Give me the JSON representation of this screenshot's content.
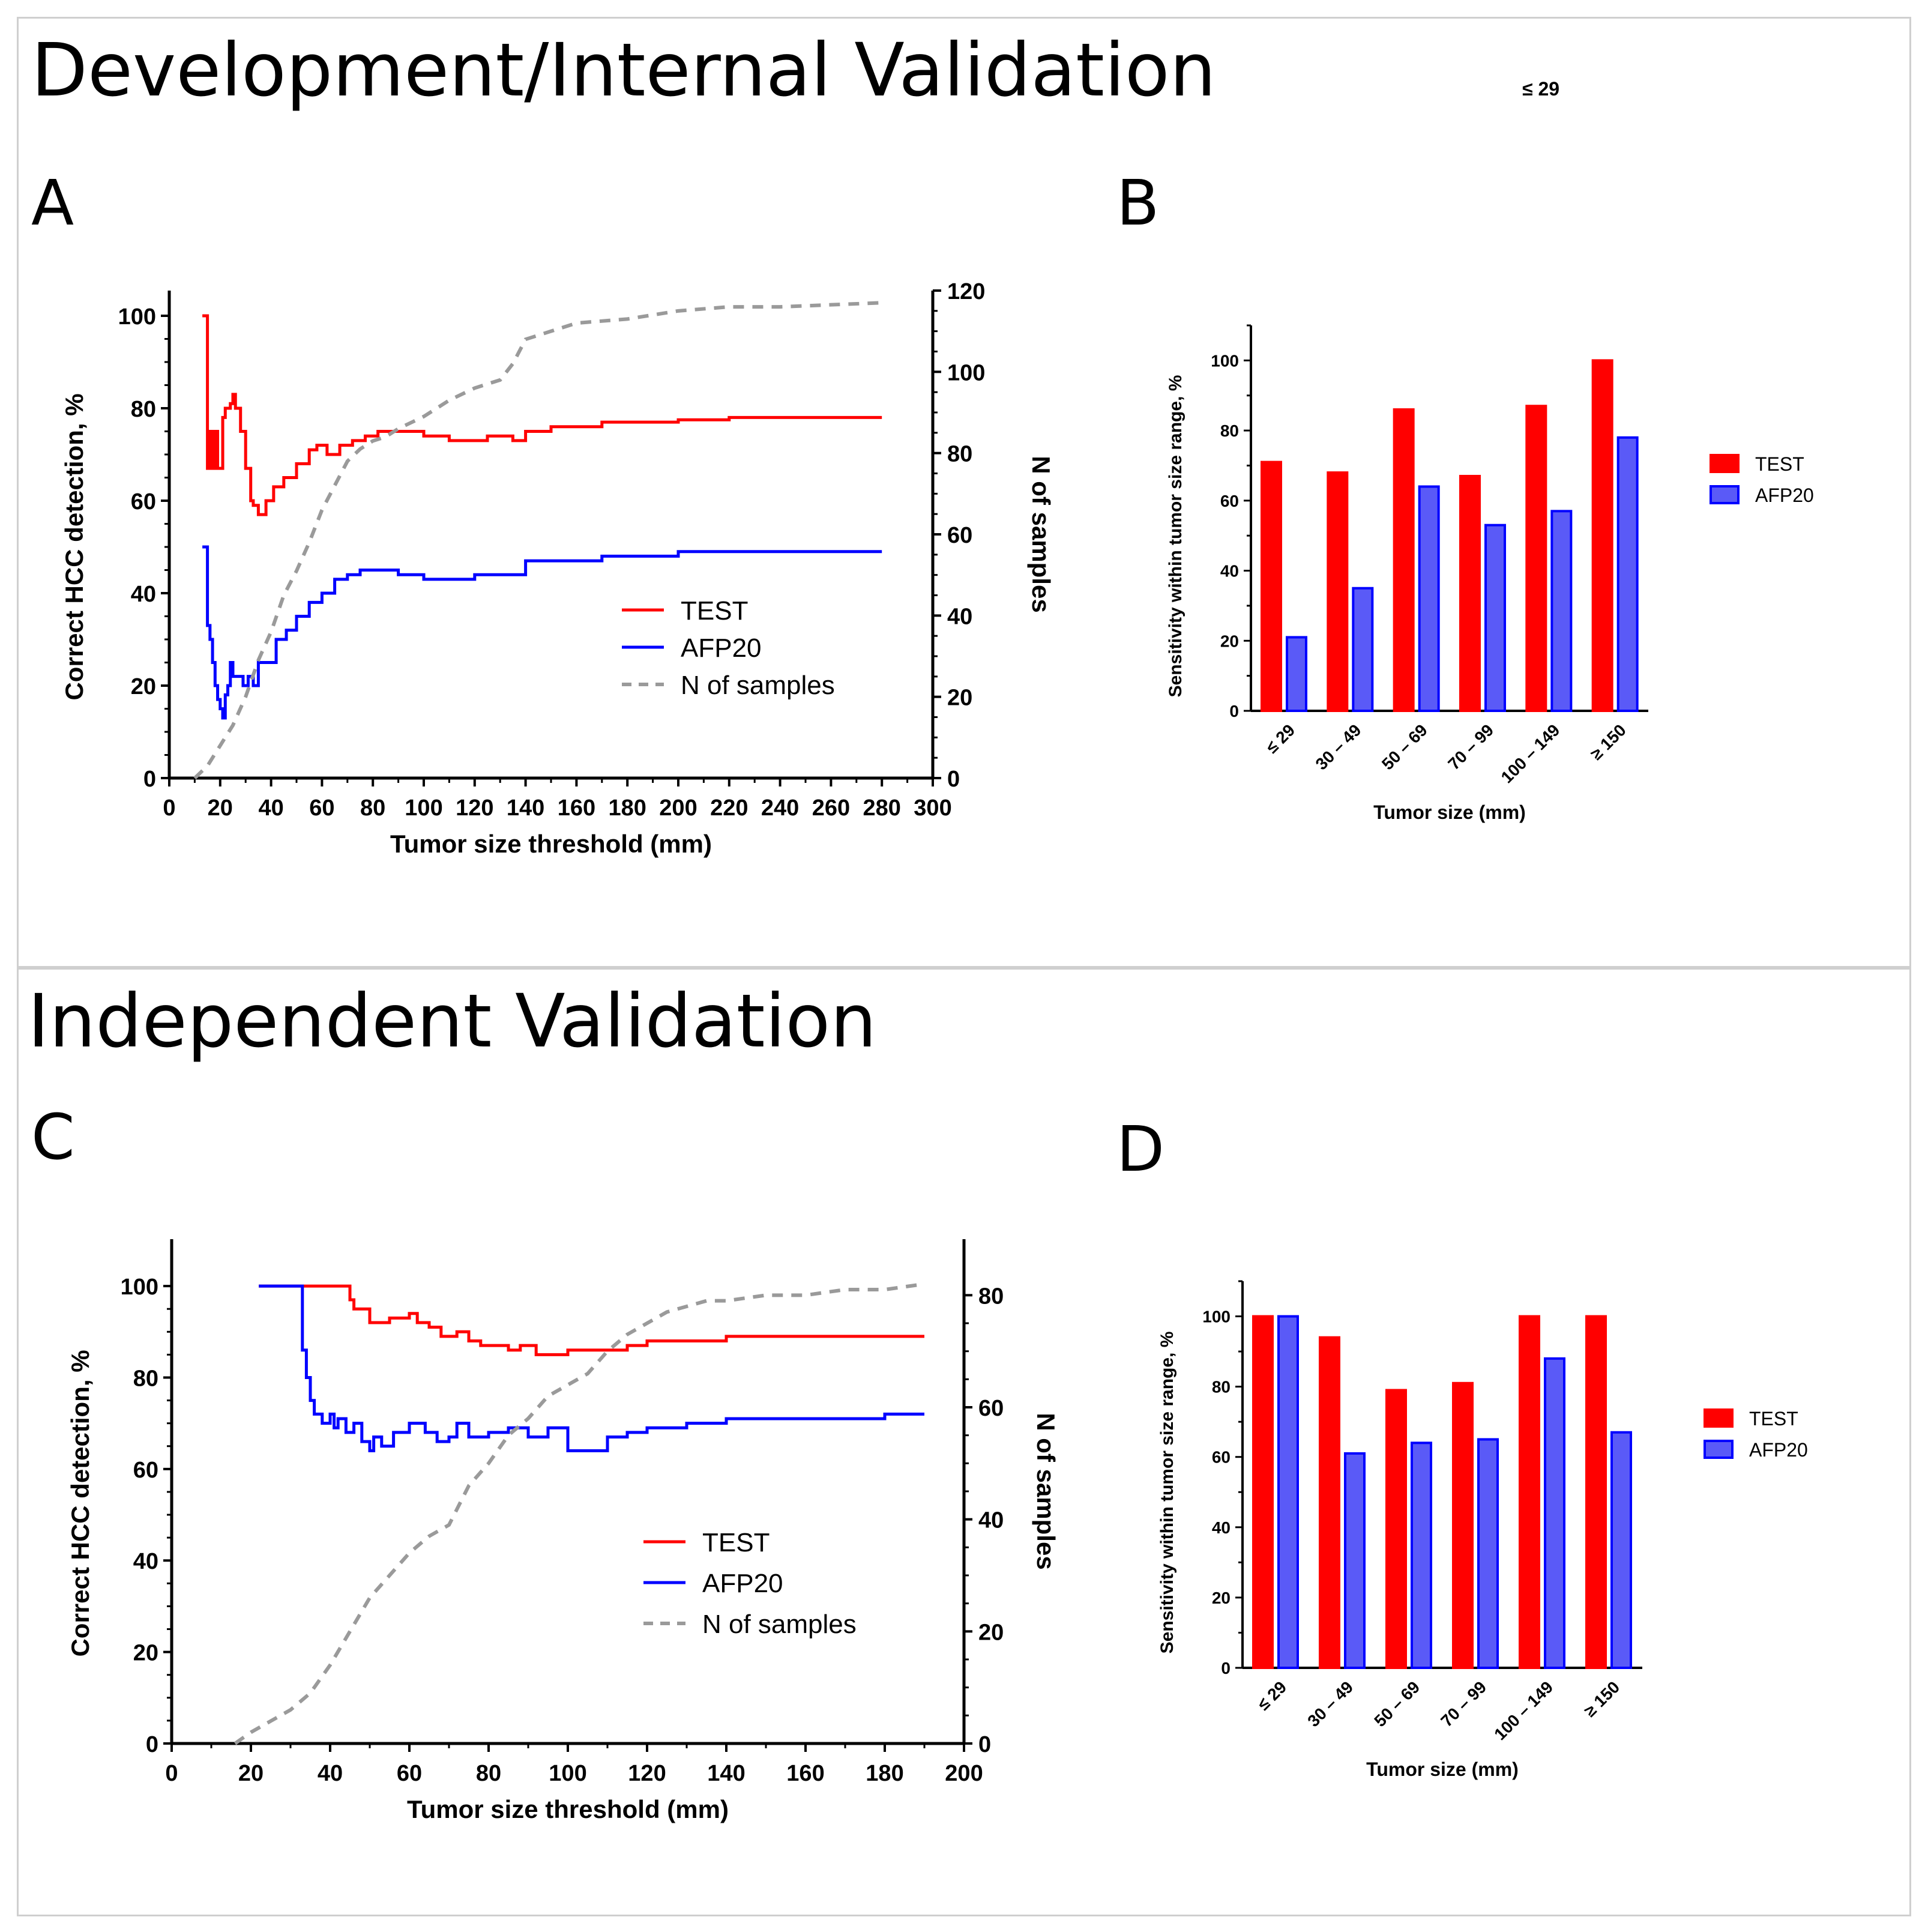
{
  "sections": [
    {
      "title": "Development/Internal Validation"
    },
    {
      "title": "Independent Validation"
    }
  ],
  "stray_label": "≤ 29",
  "colors": {
    "test": "#ff0000",
    "afp": "#0000ff",
    "afp_bar": "#5a5af7",
    "samples": "#9a9a9a"
  },
  "chart_data": [
    {
      "panel": "A",
      "type": "line",
      "xlabel": "Tumor size threshold (mm)",
      "ylabel": "Correct HCC detection, %",
      "y2label": "N of samples",
      "xlim": [
        0,
        300
      ],
      "ylim": [
        0,
        100
      ],
      "y2lim": [
        0,
        120
      ],
      "xticks": [
        0,
        20,
        40,
        60,
        80,
        100,
        120,
        140,
        160,
        180,
        200,
        220,
        240,
        260,
        280,
        300
      ],
      "yticks": [
        0,
        20,
        40,
        60,
        80,
        100
      ],
      "y2ticks": [
        0,
        20,
        40,
        60,
        80,
        100,
        120
      ],
      "legend": [
        "TEST",
        "AFP20",
        "N of samples"
      ],
      "series": [
        {
          "name": "TEST",
          "axis": "left",
          "step": true,
          "x": [
            13,
            15,
            16,
            17,
            18,
            19,
            21,
            22,
            23,
            24,
            25,
            26,
            28,
            30,
            32,
            33,
            35,
            38,
            41,
            45,
            50,
            55,
            58,
            62,
            67,
            72,
            77,
            82,
            88,
            95,
            100,
            110,
            120,
            125,
            130,
            135,
            140,
            150,
            160,
            170,
            180,
            200,
            220,
            240,
            260,
            280
          ],
          "y": [
            100,
            67,
            75,
            67,
            75,
            67,
            78,
            80,
            80,
            81,
            83,
            80,
            75,
            67,
            60,
            59,
            57,
            60,
            63,
            65,
            68,
            71,
            72,
            70,
            72,
            73,
            74,
            75,
            75,
            75,
            74,
            73,
            73,
            74,
            74,
            73,
            75,
            76,
            76,
            77,
            77,
            77.5,
            78,
            78,
            78,
            78
          ]
        },
        {
          "name": "AFP20",
          "axis": "left",
          "step": true,
          "x": [
            13,
            15,
            16,
            17,
            18,
            19,
            20,
            21,
            22,
            23,
            24,
            25,
            27,
            29,
            31,
            33,
            35,
            38,
            42,
            46,
            50,
            55,
            60,
            65,
            70,
            75,
            80,
            90,
            100,
            110,
            120,
            130,
            135,
            140,
            150,
            160,
            170,
            180,
            200,
            220,
            240,
            260,
            280
          ],
          "y": [
            50,
            33,
            30,
            25,
            20,
            17,
            15,
            13,
            18,
            20,
            25,
            22,
            22,
            20,
            22,
            20,
            25,
            25,
            30,
            32,
            35,
            38,
            40,
            43,
            44,
            45,
            45,
            44,
            43,
            43,
            44,
            44,
            44,
            47,
            47,
            47,
            48,
            48,
            49,
            49,
            49,
            49,
            49
          ]
        },
        {
          "name": "N of samples",
          "axis": "right",
          "dashed": true,
          "x": [
            10,
            15,
            20,
            25,
            30,
            35,
            40,
            45,
            50,
            55,
            60,
            65,
            70,
            75,
            80,
            85,
            90,
            100,
            110,
            120,
            130,
            135,
            140,
            150,
            160,
            180,
            200,
            220,
            240,
            260,
            280
          ],
          "y": [
            0,
            3,
            8,
            13,
            20,
            29,
            36,
            45,
            51,
            58,
            66,
            72,
            78,
            81,
            83,
            84,
            86,
            89,
            93,
            96,
            98,
            102,
            108,
            110,
            112,
            113,
            115,
            116,
            116,
            116.5,
            117
          ]
        }
      ]
    },
    {
      "panel": "B",
      "type": "bar",
      "xlabel": "Tumor size (mm)",
      "ylabel": "Sensitivity within tumor size range, %",
      "ylim": [
        0,
        110
      ],
      "yticks": [
        0,
        20,
        40,
        60,
        80,
        100
      ],
      "categories": [
        "≤ 29",
        "30 – 49",
        "50 – 69",
        "70 – 99",
        "100 – 149",
        "≥ 150"
      ],
      "series": [
        {
          "name": "TEST",
          "values": [
            71,
            68,
            86,
            67,
            87,
            100
          ]
        },
        {
          "name": "AFP20",
          "values": [
            21,
            35,
            64,
            53,
            57,
            78
          ]
        }
      ],
      "legend": [
        "TEST",
        "AFP20"
      ]
    },
    {
      "panel": "C",
      "type": "line",
      "xlabel": "Tumor size threshold (mm)",
      "ylabel": "Correct HCC detection, %",
      "y2label": "N of samples",
      "xlim": [
        0,
        200
      ],
      "ylim": [
        0,
        105
      ],
      "y2lim": [
        0,
        90
      ],
      "xticks": [
        0,
        20,
        40,
        60,
        80,
        100,
        120,
        140,
        160,
        180,
        200
      ],
      "yticks": [
        0,
        20,
        40,
        60,
        80,
        100
      ],
      "y2ticks": [
        0,
        20,
        40,
        60,
        80
      ],
      "legend": [
        "TEST",
        "AFP20",
        "N of samples"
      ],
      "series": [
        {
          "name": "TEST",
          "axis": "left",
          "step": true,
          "x": [
            22,
            45,
            46,
            50,
            55,
            60,
            62,
            65,
            68,
            70,
            72,
            75,
            78,
            82,
            85,
            88,
            92,
            96,
            100,
            110,
            115,
            120,
            130,
            140,
            160,
            180,
            190
          ],
          "y": [
            100,
            97,
            95,
            92,
            93,
            94,
            92,
            91,
            89,
            89,
            90,
            88,
            87,
            87,
            86,
            87,
            85,
            85,
            86,
            86,
            87,
            88,
            88,
            89,
            89,
            89,
            89
          ]
        },
        {
          "name": "AFP20",
          "axis": "left",
          "step": true,
          "x": [
            22,
            33,
            34,
            35,
            36,
            37,
            38,
            40,
            41,
            42,
            44,
            46,
            48,
            50,
            51,
            53,
            56,
            60,
            64,
            67,
            70,
            72,
            75,
            80,
            85,
            90,
            95,
            100,
            110,
            115,
            120,
            130,
            140,
            160,
            180,
            190
          ],
          "y": [
            100,
            86,
            80,
            75,
            72,
            72,
            70,
            72,
            69,
            71,
            68,
            70,
            66,
            64,
            67,
            65,
            68,
            70,
            68,
            66,
            67,
            70,
            67,
            68,
            69,
            67,
            69,
            64,
            67,
            68,
            69,
            70,
            71,
            71,
            72,
            72
          ]
        },
        {
          "name": "N of samples",
          "axis": "right",
          "dashed": true,
          "x": [
            16,
            20,
            25,
            30,
            35,
            40,
            45,
            50,
            55,
            60,
            65,
            70,
            75,
            80,
            85,
            90,
            95,
            100,
            105,
            110,
            115,
            120,
            125,
            130,
            135,
            140,
            150,
            160,
            170,
            180,
            190
          ],
          "y": [
            0,
            2,
            4,
            6,
            9,
            14,
            20,
            26,
            30,
            34,
            37,
            39,
            46,
            50,
            55,
            58,
            62,
            64,
            66,
            70,
            73,
            75,
            77,
            78,
            79,
            79,
            80,
            80,
            81,
            81,
            82
          ]
        }
      ]
    },
    {
      "panel": "D",
      "type": "bar",
      "xlabel": "Tumor size (mm)",
      "ylabel": "Sensitivity within tumor size range, %",
      "ylim": [
        0,
        110
      ],
      "yticks": [
        0,
        20,
        40,
        60,
        80,
        100
      ],
      "categories": [
        "≤ 29",
        "30 – 49",
        "50 – 69",
        "70 – 99",
        "100 – 149",
        "≥ 150"
      ],
      "series": [
        {
          "name": "TEST",
          "values": [
            100,
            94,
            79,
            81,
            100,
            100
          ]
        },
        {
          "name": "AFP20",
          "values": [
            100,
            61,
            64,
            65,
            88,
            67
          ]
        }
      ],
      "legend": [
        "TEST",
        "AFP20"
      ]
    }
  ]
}
